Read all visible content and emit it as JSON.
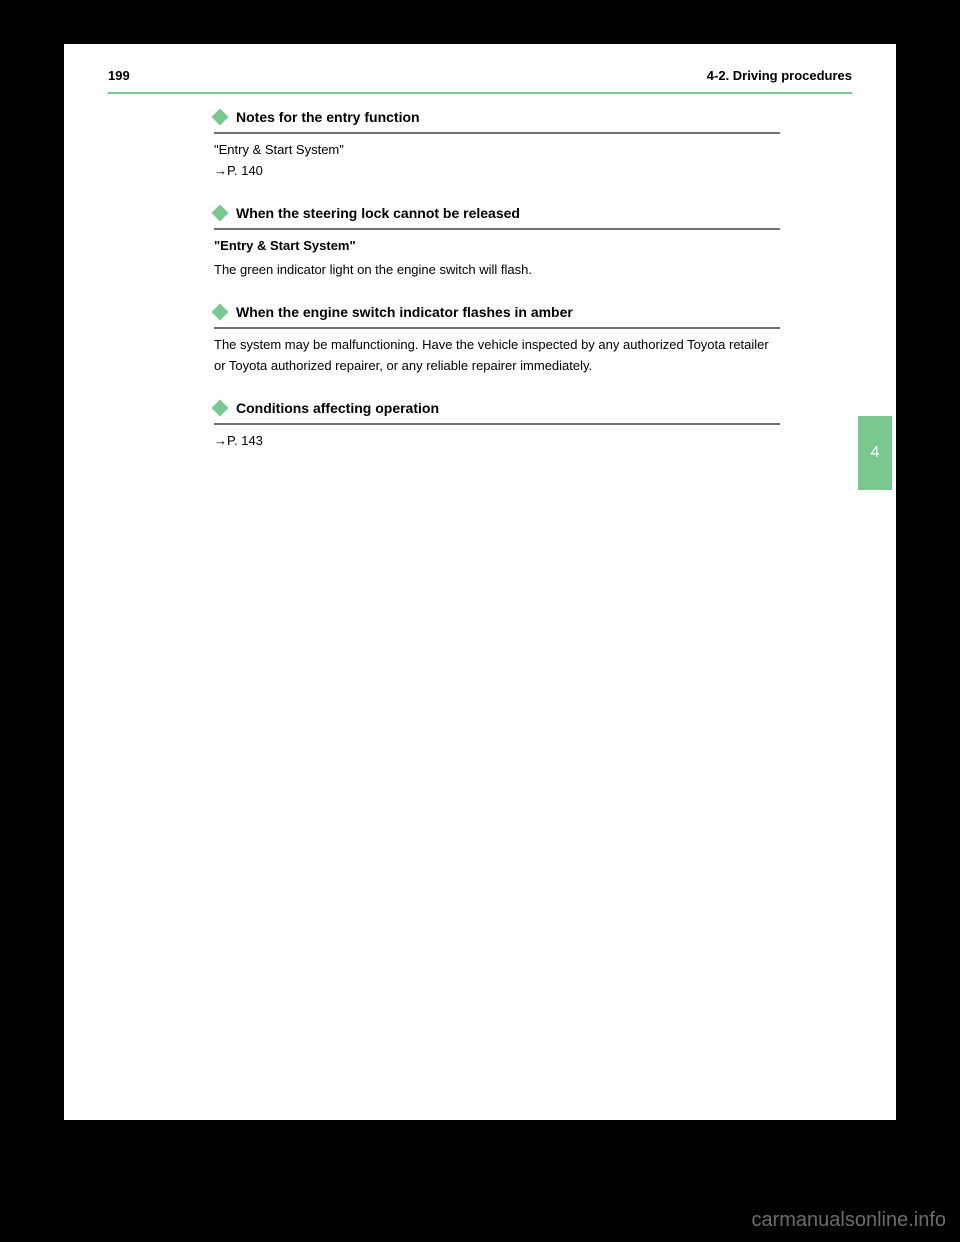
{
  "header": {
    "page_number": "199",
    "section_title": "4-2. Driving procedures"
  },
  "content": {
    "blocks": [
      {
        "heading": "Notes for the entry function",
        "body": "\"Entry & Start System\"\n→P. 140"
      },
      {
        "heading": "When the steering lock cannot be released",
        "subheading": "\"Entry & Start System\"",
        "body": "The green indicator light on the engine switch will flash."
      },
      {
        "heading": "When the engine switch indicator flashes in amber",
        "body": "The system may be malfunctioning. Have the vehicle inspected by any authorized Toyota retailer or Toyota authorized repairer, or any reliable repairer immediately."
      },
      {
        "heading": "Conditions affecting operation",
        "body": "→P. 143"
      }
    ]
  },
  "side_tab": {
    "label": "4"
  },
  "watermark": "carmanualsonline.info",
  "colors": {
    "accent": "#7ac88f",
    "divider": "#707070",
    "page_bg": "#ffffff",
    "outer_bg": "#000000"
  }
}
